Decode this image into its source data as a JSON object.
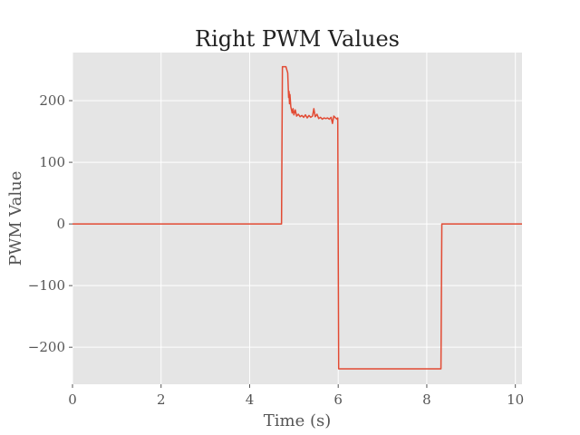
{
  "chart_data": {
    "type": "line",
    "title": "Right PWM Values",
    "xlabel": "Time (s)",
    "ylabel": "PWM Value",
    "xlim": [
      0,
      10.15
    ],
    "ylim": [
      -260,
      278
    ],
    "xticks": [
      0,
      2,
      4,
      6,
      8,
      10
    ],
    "xtick_labels": [
      "0",
      "2",
      "4",
      "6",
      "8",
      "10"
    ],
    "yticks": [
      -200,
      -100,
      0,
      100,
      200
    ],
    "ytick_labels": [
      "−200",
      "−100",
      "0",
      "100",
      "200"
    ],
    "grid": true,
    "series": [
      {
        "color": "#e24a33",
        "x": [
          0,
          4.72,
          4.74,
          4.82,
          4.86,
          4.88,
          4.89,
          4.9,
          4.91,
          4.93,
          4.96,
          4.98,
          5.0,
          5.03,
          5.06,
          5.1,
          5.14,
          5.18,
          5.22,
          5.26,
          5.3,
          5.34,
          5.38,
          5.42,
          5.45,
          5.48,
          5.52,
          5.56,
          5.6,
          5.64,
          5.68,
          5.72,
          5.76,
          5.8,
          5.84,
          5.87,
          5.9,
          5.94,
          5.97,
          5.99,
          6.01,
          8.32,
          8.34,
          10.15
        ],
        "y": [
          0,
          0,
          255,
          255,
          245,
          205,
          215,
          195,
          210,
          190,
          180,
          187,
          177,
          185,
          175,
          178,
          174,
          176,
          173,
          177,
          172,
          176,
          173,
          175,
          187,
          174,
          178,
          171,
          173,
          170,
          172,
          171,
          172,
          170,
          173,
          163,
          175,
          172,
          170,
          172,
          -235,
          -235,
          0,
          0
        ]
      }
    ]
  }
}
